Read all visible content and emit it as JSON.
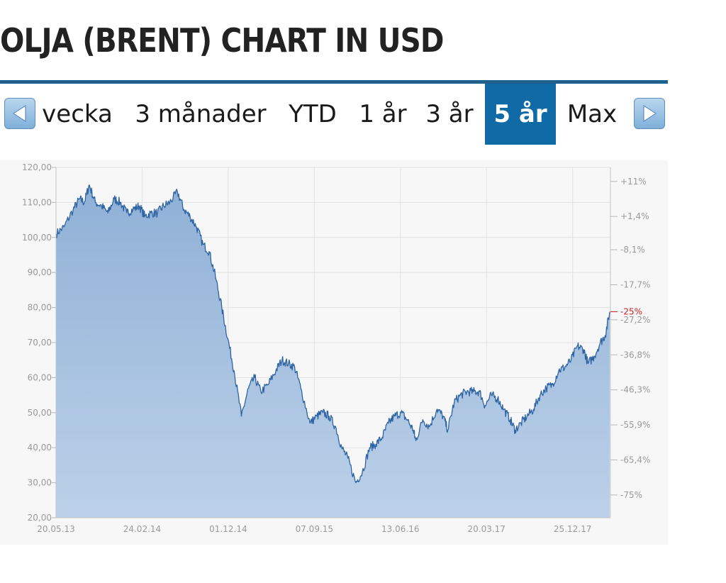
{
  "page": {
    "title": "OLJA (BRENT) CHART IN USD"
  },
  "tabs": {
    "prev_icon": "arrow-left-icon",
    "next_icon": "arrow-right-icon",
    "items": [
      {
        "label": "vecka",
        "active": false
      },
      {
        "label": "3 månader",
        "active": false
      },
      {
        "label": "YTD",
        "active": false
      },
      {
        "label": "1 år",
        "active": false
      },
      {
        "label": "3 år",
        "active": false
      },
      {
        "label": "5 år",
        "active": true
      },
      {
        "label": "Max",
        "active": false
      }
    ]
  },
  "colors": {
    "accent": "#0f6aa6",
    "rule": "#1f5f8b",
    "line": "#2f64a4",
    "area": "#9fbedd",
    "current_value": "#cc2222"
  },
  "chart_data": {
    "type": "area",
    "title": "",
    "xlabel": "",
    "ylabel": "",
    "ylim": [
      20,
      120
    ],
    "y_ticks": [
      "20,00",
      "30,00",
      "40,00",
      "50,00",
      "60,00",
      "70,00",
      "80,00",
      "90,00",
      "100,00",
      "110,00",
      "120,00"
    ],
    "y_tick_values": [
      20,
      30,
      40,
      50,
      60,
      70,
      80,
      90,
      100,
      110,
      120
    ],
    "x_ticks": [
      "20.05.13",
      "24.02.14",
      "01.12.14",
      "07.09.15",
      "13.06.16",
      "20.03.17",
      "25.12.17"
    ],
    "right_axis_ticks": [
      "+11%",
      "+1,4%",
      "-8,1%",
      "-17,7%",
      "-27,2%",
      "-36,8%",
      "-46,3%",
      "-55,9%",
      "-65,4%",
      "-75%"
    ],
    "right_axis_values": [
      116,
      106,
      96.5,
      86.5,
      76.5,
      66.5,
      56.5,
      46.5,
      36.5,
      26.5
    ],
    "current_change": "-25%",
    "current_value": 78.8,
    "grid": true,
    "series": [
      {
        "x": [
          "2013-05-20",
          "2013-06-15",
          "2013-07-15",
          "2013-08-05",
          "2013-08-20",
          "2013-09-05",
          "2013-09-25",
          "2013-10-15",
          "2013-11-05",
          "2013-11-25",
          "2013-12-15",
          "2014-01-05",
          "2014-01-25",
          "2014-02-15",
          "2014-03-05",
          "2014-03-25",
          "2014-04-15",
          "2014-05-05",
          "2014-05-25",
          "2014-06-19",
          "2014-07-10",
          "2014-07-30",
          "2014-08-20",
          "2014-09-10",
          "2014-09-30",
          "2014-10-20",
          "2014-11-10",
          "2014-11-30",
          "2014-12-20",
          "2015-01-13",
          "2015-02-05",
          "2015-02-25",
          "2015-03-17",
          "2015-04-10",
          "2015-05-05",
          "2015-05-25",
          "2015-06-15",
          "2015-07-05",
          "2015-07-25",
          "2015-08-24",
          "2015-09-15",
          "2015-10-05",
          "2015-10-25",
          "2015-11-15",
          "2015-12-05",
          "2015-12-25",
          "2016-01-20",
          "2016-02-10",
          "2016-03-05",
          "2016-03-25",
          "2016-04-15",
          "2016-05-05",
          "2016-05-25",
          "2016-06-15",
          "2016-07-05",
          "2016-07-25",
          "2016-08-02",
          "2016-08-25",
          "2016-09-15",
          "2016-10-10",
          "2016-10-30",
          "2016-11-14",
          "2016-12-05",
          "2016-12-25",
          "2017-01-15",
          "2017-02-05",
          "2017-02-25",
          "2017-03-15",
          "2017-04-05",
          "2017-04-25",
          "2017-05-15",
          "2017-06-05",
          "2017-06-21",
          "2017-07-10",
          "2017-07-30",
          "2017-08-20",
          "2017-09-10",
          "2017-09-30",
          "2017-10-20",
          "2017-11-10",
          "2017-11-30",
          "2017-12-20",
          "2018-01-10",
          "2018-01-30",
          "2018-02-13",
          "2018-03-05",
          "2018-03-25",
          "2018-04-10",
          "2018-04-25"
        ],
        "y": [
          101,
          103,
          108,
          111,
          110,
          115,
          110,
          109,
          107,
          111,
          110,
          107,
          108,
          109,
          106,
          107,
          107,
          109,
          110,
          113,
          108,
          106,
          103,
          98,
          96,
          89,
          80,
          71,
          62,
          49,
          57,
          60,
          56,
          58,
          62,
          65,
          64,
          63,
          57,
          47,
          49,
          50,
          49,
          46,
          40,
          37,
          30,
          33,
          40,
          41,
          43,
          47,
          49,
          50,
          48,
          45,
          42,
          48,
          46,
          51,
          49,
          45,
          53,
          55,
          56,
          56,
          56,
          52,
          55,
          54,
          51,
          48,
          45,
          47,
          49,
          51,
          55,
          57,
          58,
          62,
          63,
          65,
          69,
          68,
          64,
          66,
          70,
          72,
          78.8
        ]
      }
    ]
  }
}
